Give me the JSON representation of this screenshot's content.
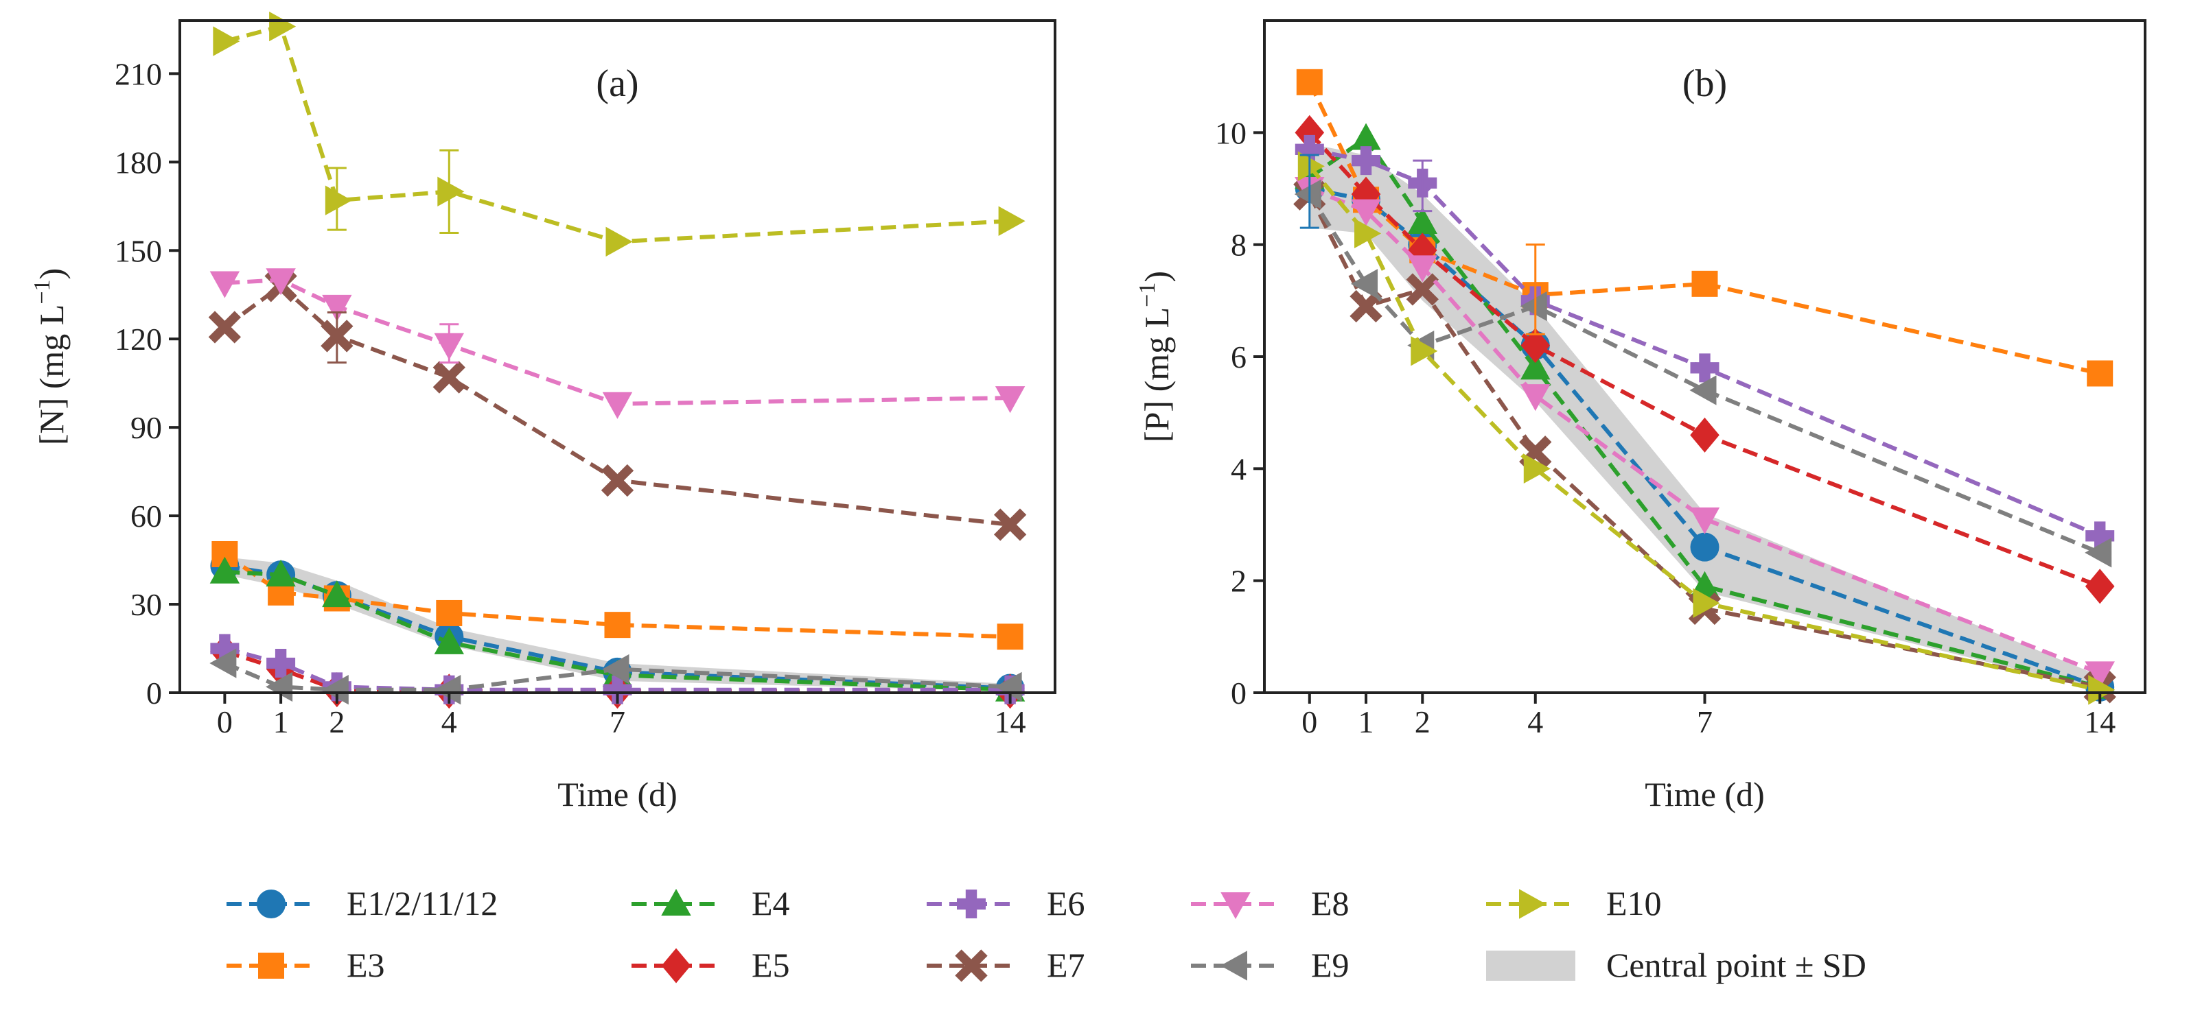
{
  "chart_data": [
    {
      "type": "line",
      "title": "(a)",
      "xlabel": "Time (d)",
      "ylabel": "[N] (mg L",
      "ylabel_sup": "−1",
      "ylabel_close": ")",
      "x": [
        0,
        1,
        2,
        4,
        7,
        14
      ],
      "xticks": [
        "0",
        "1",
        "2",
        "4",
        "7",
        "14"
      ],
      "xlim": [
        -0.8,
        14.8
      ],
      "ylim": [
        0,
        228
      ],
      "yticks": [
        "0",
        "30",
        "60",
        "90",
        "120",
        "150",
        "180",
        "210"
      ],
      "band": {
        "x": [
          0,
          1,
          2,
          4,
          7,
          14
        ],
        "lower": [
          40,
          36,
          30,
          16,
          4,
          0.5
        ],
        "upper": [
          46,
          44,
          38,
          22,
          10,
          3
        ]
      },
      "series": [
        {
          "name": "E1/2/11/12",
          "values": [
            43,
            40,
            33,
            19,
            7,
            1.5
          ]
        },
        {
          "name": "E3",
          "values": [
            47,
            34,
            32,
            27,
            23,
            19
          ]
        },
        {
          "name": "E4",
          "values": [
            41,
            40,
            33,
            17,
            6,
            1
          ]
        },
        {
          "name": "E5",
          "values": [
            14,
            8,
            1,
            0.5,
            0.5,
            0.5
          ]
        },
        {
          "name": "E6",
          "values": [
            15,
            10,
            2,
            1,
            1,
            1
          ]
        },
        {
          "name": "E7",
          "values": [
            124,
            138,
            121,
            107,
            72,
            57
          ]
        },
        {
          "name": "E8",
          "values": [
            139,
            140,
            131,
            118,
            98,
            100
          ]
        },
        {
          "name": "E9",
          "values": [
            10,
            2,
            1,
            1,
            8,
            2
          ]
        },
        {
          "name": "E10",
          "values": [
            221,
            226,
            167,
            170,
            153,
            160
          ]
        }
      ],
      "errorbars": [
        {
          "series": "E10",
          "x": 2,
          "low": 157,
          "high": 178
        },
        {
          "series": "E10",
          "x": 4,
          "low": 156,
          "high": 184
        },
        {
          "series": "E7",
          "x": 2,
          "low": 112,
          "high": 129
        },
        {
          "series": "E8",
          "x": 4,
          "low": 112,
          "high": 125
        }
      ]
    },
    {
      "type": "line",
      "title": "(b)",
      "xlabel": "Time (d)",
      "ylabel": "[P] (mg L",
      "ylabel_sup": "−1",
      "ylabel_close": ")",
      "x": [
        0,
        1,
        2,
        4,
        7,
        14
      ],
      "xticks": [
        "0",
        "1",
        "2",
        "4",
        "7",
        "14"
      ],
      "xlim": [
        -0.8,
        14.8
      ],
      "ylim": [
        0,
        12
      ],
      "yticks": [
        "0",
        "2",
        "4",
        "6",
        "8",
        "10"
      ],
      "band": {
        "x": [
          0,
          1,
          2,
          4,
          7,
          14
        ],
        "lower": [
          8.3,
          8.2,
          7.0,
          5.2,
          1.8,
          0.05
        ],
        "upper": [
          9.8,
          9.6,
          8.9,
          6.9,
          3.2,
          0.3
        ]
      },
      "series": [
        {
          "name": "E1/2/11/12",
          "values": [
            9.0,
            8.8,
            8.0,
            6.2,
            2.6,
            0.1
          ]
        },
        {
          "name": "E3",
          "values": [
            10.9,
            8.8,
            7.9,
            7.1,
            7.3,
            5.7
          ]
        },
        {
          "name": "E4",
          "values": [
            9.2,
            9.9,
            8.4,
            5.8,
            1.9,
            0.1
          ]
        },
        {
          "name": "E5",
          "values": [
            10.0,
            8.9,
            7.9,
            6.2,
            4.6,
            1.9
          ]
        },
        {
          "name": "E6",
          "values": [
            9.7,
            9.5,
            9.1,
            7.0,
            5.8,
            2.8
          ]
        },
        {
          "name": "E7",
          "values": [
            8.9,
            6.9,
            7.2,
            4.3,
            1.5,
            0.1
          ]
        },
        {
          "name": "E8",
          "values": [
            9.0,
            8.6,
            7.6,
            5.3,
            3.1,
            0.35
          ]
        },
        {
          "name": "E9",
          "values": [
            8.9,
            7.3,
            6.2,
            6.9,
            5.4,
            2.5
          ]
        },
        {
          "name": "E10",
          "values": [
            9.4,
            8.2,
            6.1,
            4.0,
            1.6,
            0.05
          ]
        }
      ],
      "errorbars": [
        {
          "series": "E1/2/11/12",
          "x": 0,
          "low": 8.3,
          "high": 9.6
        },
        {
          "series": "E3",
          "x": 4,
          "low": 6.4,
          "high": 8.0
        },
        {
          "series": "E6",
          "x": 2,
          "low": 8.6,
          "high": 9.5
        }
      ]
    }
  ],
  "colors": {
    "E1/2/11/12": "#1f77b4",
    "E3": "#ff7f0e",
    "E4": "#2ca02c",
    "E5": "#d62728",
    "E6": "#9467bd",
    "E7": "#8c564b",
    "E8": "#e377c2",
    "E9": "#7f7f7f",
    "E10": "#bcbd22",
    "band": "#bfbfbf"
  },
  "markers": {
    "E1/2/11/12": "circle",
    "E3": "square",
    "E4": "triangle-up",
    "E5": "diamond",
    "E6": "plus",
    "E7": "x",
    "E8": "triangle-down",
    "E9": "triangle-left",
    "E10": "triangle-right"
  },
  "legend": {
    "placement": "bottom",
    "entries": [
      "E1/2/11/12",
      "E4",
      "E6",
      "E8",
      "E10",
      "E3",
      "E5",
      "E7",
      "E9",
      "Central point ± SD"
    ]
  }
}
